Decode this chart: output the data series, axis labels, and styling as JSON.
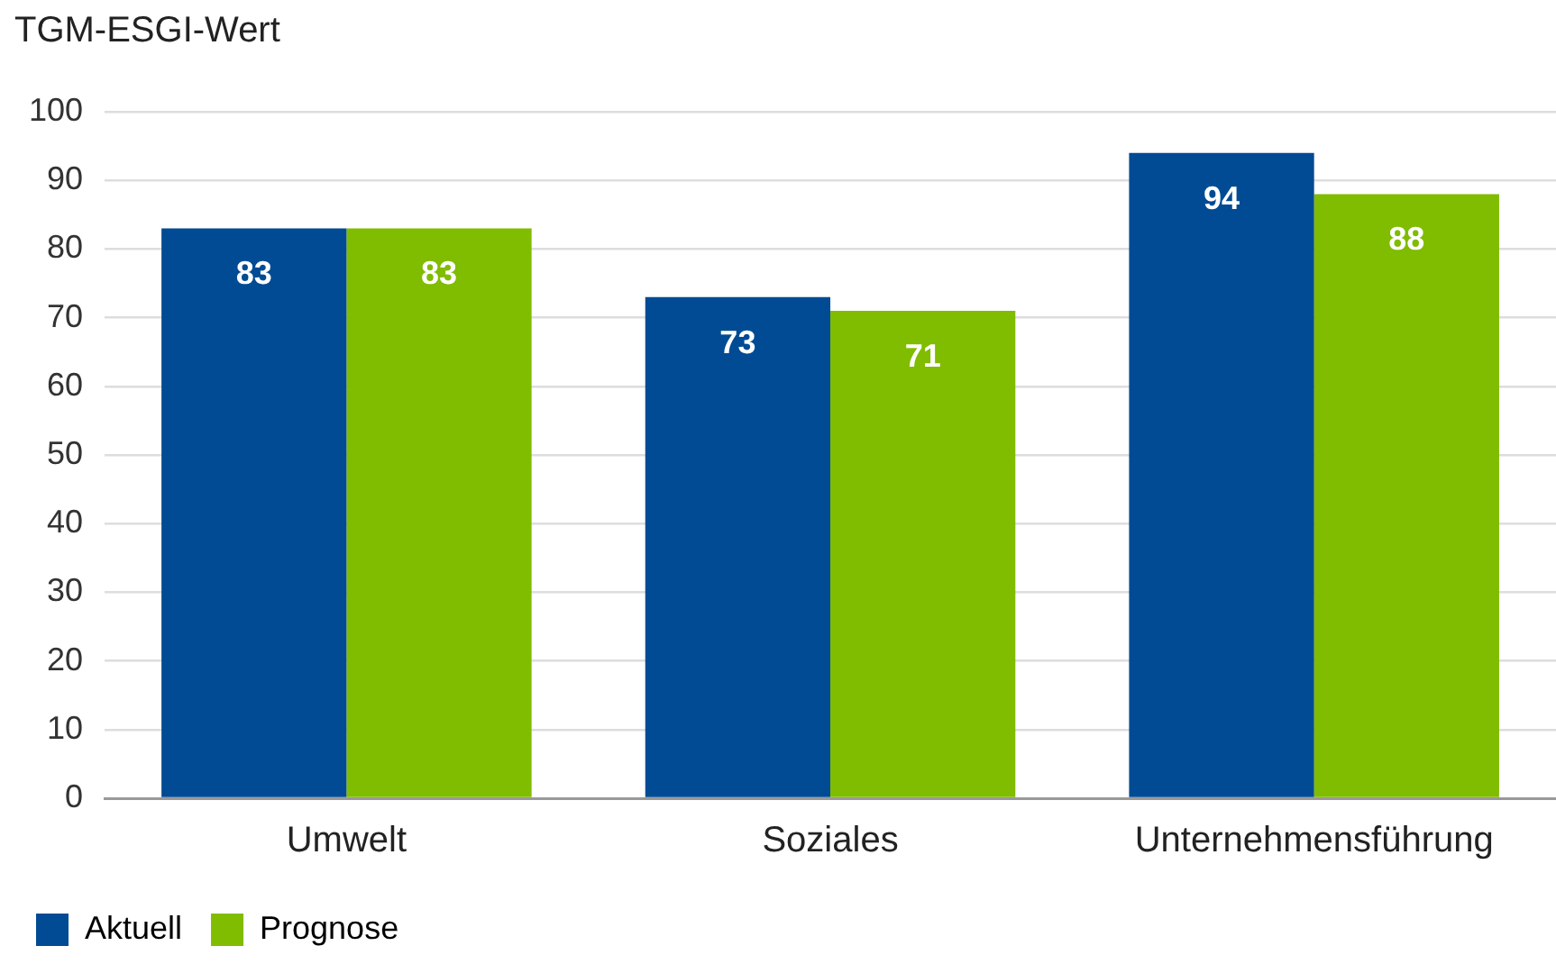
{
  "chart_data": {
    "type": "bar",
    "ylabel": "TGM-ESGI-Wert",
    "categories": [
      "Umwelt",
      "Soziales",
      "Unternehmensführung"
    ],
    "series": [
      {
        "name": "Aktuell",
        "color": "#004b93",
        "values": [
          83,
          73,
          94
        ]
      },
      {
        "name": "Prognose",
        "color": "#80bc00",
        "values": [
          83,
          71,
          88
        ]
      }
    ],
    "ylim": [
      0,
      100
    ],
    "yticks": [
      0,
      10,
      20,
      30,
      40,
      50,
      60,
      70,
      80,
      90,
      100
    ],
    "grid": "y",
    "legend": "bottom left",
    "data_labels": true
  }
}
